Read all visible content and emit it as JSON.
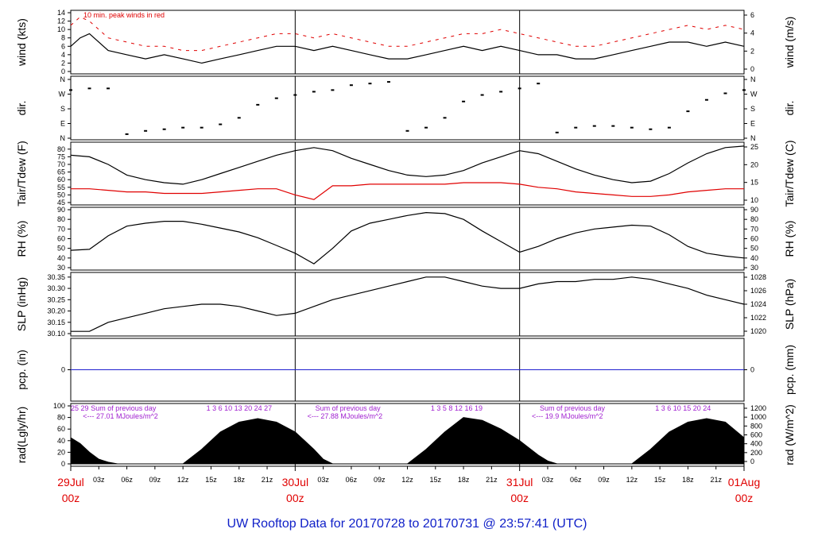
{
  "footer": "UW Rooftop Data for 20170728  to  20170731 @ 23:57:41  (UTC)",
  "colors": {
    "black": "#000000",
    "red": "#e00000",
    "blue": "#2020d0",
    "purple": "#a020d0",
    "axis": "#000000"
  },
  "chart_data": [
    {
      "type": "line",
      "left_label": "wind (kts)",
      "right_label": "wind (m/s)",
      "annotation": "10 min. peak winds in red",
      "ylim": [
        0,
        14
      ],
      "y_ticks": [
        "0",
        "2",
        "4",
        "6",
        "8",
        "10",
        "12",
        "14"
      ],
      "right_ylim": [
        0,
        7.2
      ],
      "right_ticks": [
        "0",
        "2",
        "4",
        "6"
      ],
      "series": [
        {
          "name": "wind",
          "color": "#000000",
          "x_hours": [
            0,
            1,
            2,
            4,
            6,
            8,
            10,
            12,
            14,
            16,
            18,
            20,
            22,
            24,
            26,
            28,
            30,
            32,
            34,
            36,
            38,
            40,
            42,
            44,
            46,
            48,
            50,
            52,
            54,
            56,
            58,
            60,
            62,
            64,
            66,
            68,
            70,
            72
          ],
          "values": [
            6,
            8,
            9,
            5,
            4,
            3,
            4,
            3,
            2,
            3,
            4,
            5,
            6,
            6,
            5,
            6,
            5,
            4,
            3,
            3,
            4,
            5,
            6,
            5,
            6,
            5,
            4,
            4,
            3,
            3,
            4,
            5,
            6,
            7,
            7,
            6,
            7,
            6
          ]
        },
        {
          "name": "10 min. peak winds",
          "color": "#e00000",
          "x_hours": [
            0,
            1,
            2,
            4,
            6,
            8,
            10,
            12,
            14,
            16,
            18,
            20,
            22,
            24,
            26,
            28,
            30,
            32,
            34,
            36,
            38,
            40,
            42,
            44,
            46,
            48,
            50,
            52,
            54,
            56,
            58,
            60,
            62,
            64,
            66,
            68,
            70,
            72
          ],
          "values": [
            11,
            13,
            12,
            8,
            7,
            6,
            6,
            5,
            5,
            6,
            7,
            8,
            9,
            9,
            8,
            9,
            8,
            7,
            6,
            6,
            7,
            8,
            9,
            9,
            10,
            9,
            8,
            7,
            6,
            6,
            7,
            8,
            9,
            10,
            11,
            10,
            11,
            10
          ]
        }
      ]
    },
    {
      "type": "scatter",
      "left_label": "dir.",
      "right_label": "dir.",
      "y_ticks": [
        "N",
        "W",
        "S",
        "E",
        "N"
      ],
      "series": [
        {
          "name": "direction",
          "color": "#000000",
          "x_hours": [
            0,
            2,
            4,
            6,
            8,
            10,
            12,
            14,
            16,
            18,
            20,
            22,
            24,
            26,
            28,
            30,
            32,
            34,
            36,
            38,
            40,
            42,
            44,
            46,
            48,
            50,
            52,
            54,
            56,
            58,
            60,
            62,
            64,
            66,
            68,
            70,
            72
          ],
          "values": [
            290,
            300,
            300,
            20,
            40,
            50,
            60,
            60,
            80,
            120,
            200,
            240,
            260,
            280,
            290,
            320,
            330,
            340,
            40,
            60,
            120,
            220,
            260,
            280,
            300,
            330,
            30,
            60,
            70,
            70,
            60,
            50,
            60,
            160,
            230,
            270,
            290
          ]
        }
      ]
    },
    {
      "type": "line",
      "left_label": "Tair/Tdew (F)",
      "right_label": "Tair/Tdew (C)",
      "ylim": [
        45,
        83
      ],
      "y_ticks": [
        "45",
        "50",
        "55",
        "60",
        "65",
        "70",
        "75",
        "80"
      ],
      "right_ticks": [
        "10",
        "15",
        "20",
        "25"
      ],
      "series": [
        {
          "name": "Tair",
          "color": "#000000",
          "x_hours": [
            0,
            2,
            4,
            6,
            8,
            10,
            12,
            14,
            16,
            18,
            20,
            22,
            24,
            26,
            28,
            30,
            32,
            34,
            36,
            38,
            40,
            42,
            44,
            46,
            48,
            50,
            52,
            54,
            56,
            58,
            60,
            62,
            64,
            66,
            68,
            70,
            72
          ],
          "values": [
            76,
            75,
            70,
            63,
            60,
            58,
            57,
            60,
            64,
            68,
            72,
            76,
            79,
            81,
            79,
            74,
            70,
            66,
            63,
            62,
            63,
            66,
            71,
            75,
            79,
            77,
            72,
            67,
            63,
            60,
            58,
            59,
            64,
            71,
            77,
            81,
            82
          ]
        },
        {
          "name": "Tdew",
          "color": "#e00000",
          "x_hours": [
            0,
            2,
            4,
            6,
            8,
            10,
            12,
            14,
            16,
            18,
            20,
            22,
            24,
            26,
            28,
            30,
            32,
            34,
            36,
            38,
            40,
            42,
            44,
            46,
            48,
            50,
            52,
            54,
            56,
            58,
            60,
            62,
            64,
            66,
            68,
            70,
            72
          ],
          "values": [
            54,
            54,
            53,
            52,
            52,
            51,
            51,
            51,
            52,
            53,
            54,
            54,
            50,
            47,
            56,
            56,
            57,
            57,
            57,
            57,
            57,
            58,
            58,
            58,
            57,
            55,
            54,
            52,
            51,
            50,
            49,
            49,
            50,
            52,
            53,
            54,
            54
          ]
        }
      ]
    },
    {
      "type": "line",
      "left_label": "RH (%)",
      "right_label": "RH (%)",
      "ylim": [
        30,
        90
      ],
      "y_ticks": [
        "30",
        "40",
        "50",
        "60",
        "70",
        "80",
        "90"
      ],
      "series": [
        {
          "name": "RH",
          "color": "#000000",
          "x_hours": [
            0,
            2,
            4,
            6,
            8,
            10,
            12,
            14,
            16,
            18,
            20,
            22,
            24,
            26,
            28,
            30,
            32,
            34,
            36,
            38,
            40,
            42,
            44,
            46,
            48,
            50,
            52,
            54,
            56,
            58,
            60,
            62,
            64,
            66,
            68,
            70,
            72
          ],
          "values": [
            48,
            49,
            63,
            73,
            76,
            78,
            78,
            75,
            71,
            67,
            61,
            53,
            45,
            34,
            50,
            68,
            76,
            80,
            84,
            87,
            86,
            80,
            68,
            57,
            46,
            52,
            60,
            66,
            70,
            72,
            74,
            73,
            64,
            52,
            45,
            42,
            40
          ]
        }
      ]
    },
    {
      "type": "line",
      "left_label": "SLP (inHg)",
      "right_label": "SLP (hPa)",
      "ylim": [
        30.1,
        30.36
      ],
      "y_ticks": [
        "30.10",
        "30.15",
        "30.20",
        "30.25",
        "30.30",
        "30.35"
      ],
      "right_ticks": [
        "1020",
        "1022",
        "1024",
        "1026",
        "1028"
      ],
      "series": [
        {
          "name": "SLP",
          "color": "#000000",
          "x_hours": [
            0,
            2,
            4,
            6,
            8,
            10,
            12,
            14,
            16,
            18,
            20,
            22,
            24,
            26,
            28,
            30,
            32,
            34,
            36,
            38,
            40,
            42,
            44,
            46,
            48,
            50,
            52,
            54,
            56,
            58,
            60,
            62,
            64,
            66,
            68,
            70,
            72
          ],
          "values": [
            30.11,
            30.11,
            30.15,
            30.17,
            30.19,
            30.21,
            30.22,
            30.23,
            30.23,
            30.22,
            30.2,
            30.18,
            30.19,
            30.22,
            30.25,
            30.27,
            30.29,
            30.31,
            30.33,
            30.35,
            30.35,
            30.33,
            30.31,
            30.3,
            30.3,
            30.32,
            30.33,
            30.33,
            30.34,
            30.34,
            30.35,
            30.34,
            30.32,
            30.3,
            30.27,
            30.25,
            30.23
          ]
        }
      ]
    },
    {
      "type": "line",
      "left_label": "pcp. (in)",
      "right_label": "pcp. (mm)",
      "y_ticks": [
        "0"
      ],
      "right_ticks": [
        "0"
      ],
      "series": [
        {
          "name": "pcp",
          "color": "#2020d0",
          "x_hours": [
            0,
            72
          ],
          "values": [
            0,
            0
          ]
        }
      ]
    },
    {
      "type": "area",
      "left_label": "rad(Lgly/hr)",
      "right_label": "rad (W/m^2)",
      "ylim": [
        0,
        100
      ],
      "y_ticks": [
        "0",
        "20",
        "40",
        "60",
        "80",
        "100"
      ],
      "right_ticks": [
        "0",
        "200",
        "400",
        "600",
        "800",
        "1000",
        "1200"
      ],
      "series": [
        {
          "name": "rad",
          "color": "#000000",
          "x_hours": [
            0,
            1,
            2,
            3,
            4,
            5,
            12,
            14,
            16,
            18,
            20,
            22,
            24,
            26,
            27,
            28,
            36,
            38,
            40,
            42,
            44,
            46,
            48,
            50,
            51,
            52,
            60,
            62,
            64,
            66,
            68,
            70,
            72
          ],
          "values": [
            45,
            35,
            20,
            8,
            3,
            0,
            0,
            25,
            55,
            72,
            78,
            72,
            55,
            25,
            8,
            0,
            0,
            25,
            55,
            80,
            75,
            60,
            40,
            15,
            5,
            0,
            0,
            25,
            55,
            72,
            78,
            72,
            45
          ]
        }
      ],
      "day_summaries": [
        {
          "label": "Sum of previous day",
          "value": "<--- 27.01 MJoules/m^2"
        },
        {
          "label": "Sum of previous day",
          "value": "<--- 27.88 MJoules/m^2"
        },
        {
          "label": "Sum of previous day",
          "value": "<--- 19.9 MJoules/m^2"
        }
      ],
      "hour_marks": [
        [
          "25",
          " ",
          "29"
        ],
        [
          "1",
          "3",
          "6",
          "10",
          "13",
          "20",
          "24",
          "27"
        ],
        [
          "1",
          "3",
          "5",
          "8",
          "12",
          "16",
          "19"
        ],
        [
          "1",
          "3",
          "6",
          "10",
          "15",
          "20",
          "24"
        ]
      ]
    }
  ],
  "x_axis": {
    "hour_ticks": [
      "03z",
      "06z",
      "09z",
      "12z",
      "15z",
      "18z",
      "21z",
      "03z",
      "06z",
      "09z",
      "12z",
      "15z",
      "18z",
      "21z",
      "03z",
      "06z",
      "09z",
      "12z",
      "15z",
      "18z",
      "21z"
    ],
    "days": [
      {
        "date": "29Jul",
        "hour": "00z"
      },
      {
        "date": "30Jul",
        "hour": "00z"
      },
      {
        "date": "31Jul",
        "hour": "00z"
      },
      {
        "date": "01Aug",
        "hour": "00z"
      }
    ]
  }
}
